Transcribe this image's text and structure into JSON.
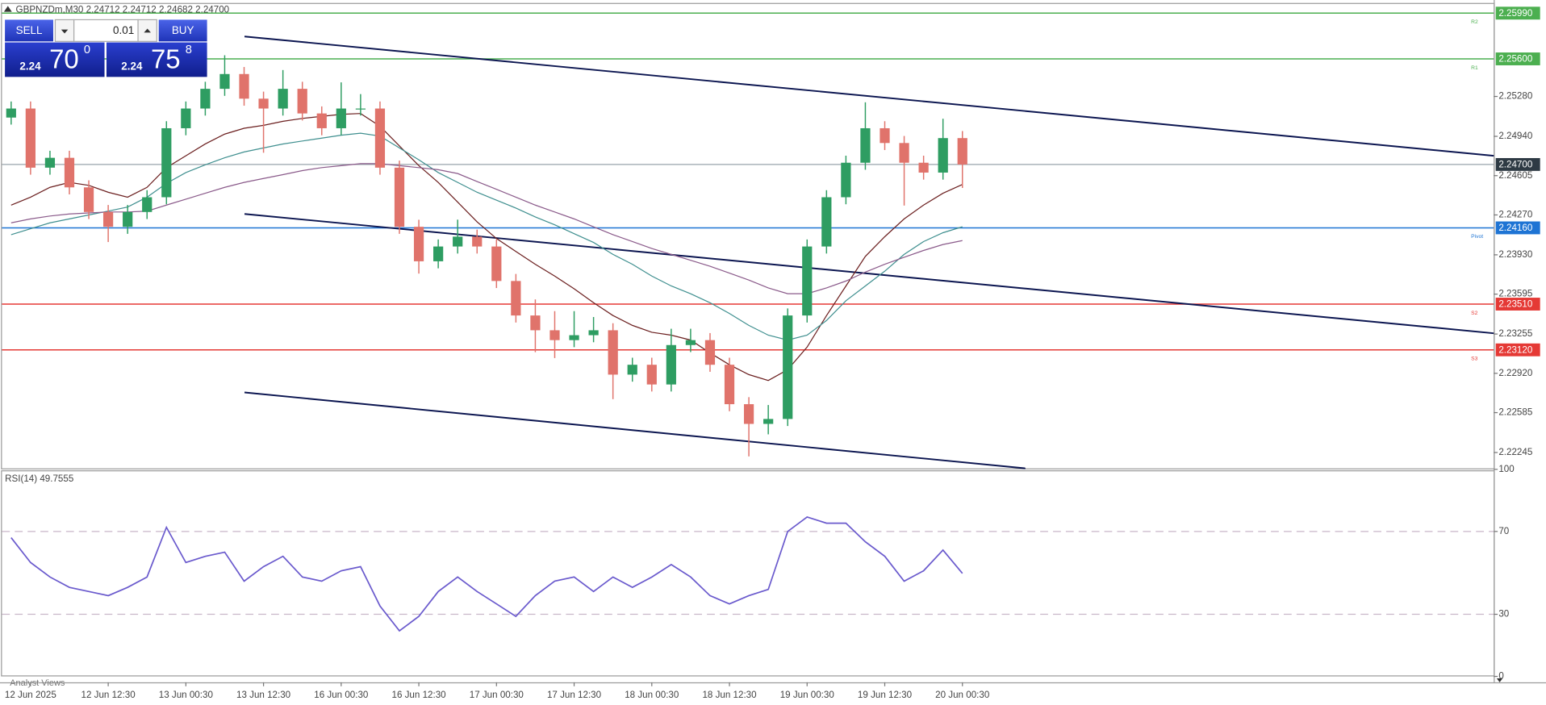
{
  "chart_data": {
    "type": "candlestick",
    "title": "GBPNZDm,M30  2.24712 2.24712 2.24682 2.24700",
    "categories": [
      null,
      "12 Jun 2025",
      null,
      null,
      null,
      "12 Jun 12:30",
      null,
      null,
      null,
      "13 Jun 00:30",
      null,
      null,
      null,
      "13 Jun 12:30",
      null,
      null,
      null,
      "16 Jun 00:30",
      null,
      null,
      null,
      "16 Jun 12:30",
      null,
      null,
      null,
      "17 Jun 00:30",
      null,
      null,
      null,
      "17 Jun 12:30",
      null,
      null,
      null,
      "18 Jun 00:30",
      null,
      null,
      null,
      "18 Jun 12:30",
      null,
      null,
      null,
      "19 Jun 00:30",
      null,
      null,
      null,
      "19 Jun 12:30",
      null,
      null,
      null,
      "20 Jun 00:30"
    ],
    "open": [
      2.251,
      2.25177,
      2.24673,
      2.24757,
      2.24505,
      2.24295,
      2.24169,
      2.24295,
      2.24421,
      2.25009,
      2.25177,
      2.25345,
      2.25471,
      2.25261,
      2.25177,
      2.25345,
      2.25135,
      2.25009,
      2.25177,
      2.25177,
      2.24673,
      2.24169,
      2.23875,
      2.24001,
      2.24085,
      2.24001,
      2.23707,
      2.23413,
      2.23287,
      2.23203,
      2.23245,
      2.23287,
      2.22909,
      2.22993,
      2.22825,
      2.23161,
      2.23203,
      2.22993,
      2.22657,
      2.22489,
      2.22531,
      2.23413,
      2.24001,
      2.24421,
      2.24715,
      2.25009,
      2.24883,
      2.24715,
      2.24631,
      2.24925
    ],
    "high": [
      2.25237,
      2.25237,
      2.24817,
      2.24817,
      2.24565,
      2.24355,
      2.24355,
      2.24481,
      2.25069,
      2.25237,
      2.25405,
      2.25631,
      2.25531,
      2.25321,
      2.25505,
      2.25405,
      2.25195,
      2.254,
      2.253,
      2.25237,
      2.24733,
      2.24229,
      2.24061,
      2.2423,
      2.24145,
      2.24061,
      2.23767,
      2.2355,
      2.2345,
      2.2345,
      2.234,
      2.23347,
      2.23053,
      2.23053,
      2.233,
      2.233,
      2.23263,
      2.23053,
      2.22717,
      2.2265,
      2.23473,
      2.24061,
      2.24481,
      2.24775,
      2.2523,
      2.25069,
      2.24943,
      2.24775,
      2.2509,
      2.24985
    ],
    "low": [
      2.2504,
      2.24613,
      2.24613,
      2.24445,
      2.24235,
      2.24039,
      2.24109,
      2.24235,
      2.24361,
      2.24949,
      2.25117,
      2.25285,
      2.25201,
      2.248,
      2.25117,
      2.25075,
      2.24949,
      2.24949,
      2.25117,
      2.24613,
      2.24109,
      2.2377,
      2.23815,
      2.23941,
      2.23941,
      2.23647,
      2.23353,
      2.231,
      2.2305,
      2.23143,
      2.23185,
      2.227,
      2.22849,
      2.22765,
      2.22765,
      2.23101,
      2.22933,
      2.22597,
      2.22212,
      2.224,
      2.22471,
      2.23353,
      2.23941,
      2.24361,
      2.24655,
      2.24823,
      2.2435,
      2.24571,
      2.24571,
      2.245
    ],
    "close": [
      2.25177,
      2.24673,
      2.24757,
      2.24505,
      2.24295,
      2.24169,
      2.24295,
      2.24421,
      2.25009,
      2.25177,
      2.25345,
      2.25471,
      2.25261,
      2.25177,
      2.25345,
      2.25135,
      2.25009,
      2.25177,
      2.25177,
      2.24673,
      2.24169,
      2.23875,
      2.24001,
      2.24085,
      2.24001,
      2.23707,
      2.23413,
      2.23287,
      2.23203,
      2.23245,
      2.23287,
      2.22909,
      2.22993,
      2.22825,
      2.23161,
      2.23203,
      2.22993,
      2.22657,
      2.22489,
      2.22531,
      2.23413,
      2.24001,
      2.24421,
      2.24715,
      2.25009,
      2.24883,
      2.24715,
      2.24631,
      2.24925,
      2.247
    ],
    "up_color": "#2e9d62",
    "down_color": "#e0736b",
    "ylim": [
      2.2211,
      2.2606
    ],
    "yticks": [
      {
        "value": 2.2528,
        "label": "2.25280"
      },
      {
        "value": 2.2494,
        "label": "2.24940"
      },
      2.24605,
      {
        "value": 2.2427,
        "label": "2.24270"
      },
      {
        "value": 2.2393,
        "label": "2.23930"
      },
      2.23595,
      2.23255,
      {
        "value": 2.2292,
        "label": "2.22920"
      },
      2.22585,
      2.22245
    ],
    "grid": false,
    "moving_averages": [
      {
        "color": "#6b1f1f",
        "values": [
          2.24354,
          2.24421,
          2.24505,
          2.24547,
          2.24522,
          2.24463,
          2.24421,
          2.24505,
          2.24673,
          2.24774,
          2.24875,
          2.24959,
          2.25009,
          2.25034,
          2.25068,
          2.25093,
          2.2511,
          2.25127,
          2.25135,
          2.25026,
          2.24858,
          2.2469,
          2.24547,
          2.24379,
          2.24211,
          2.24068,
          2.23959,
          2.2385,
          2.23749,
          2.2364,
          2.23522,
          2.23413,
          2.23329,
          2.2327,
          2.23245,
          2.23203,
          2.23094,
          2.22993,
          2.22909,
          2.22859,
          2.22951,
          2.23144,
          2.23413,
          2.23665,
          2.23917,
          2.24085,
          2.24236,
          2.24354,
          2.24455,
          2.2453
        ]
      },
      {
        "color": "#3f8f8f",
        "values": [
          2.24102,
          2.24152,
          2.24203,
          2.24236,
          2.2427,
          2.24303,
          2.24337,
          2.24421,
          2.24539,
          2.24631,
          2.24698,
          2.24757,
          2.24807,
          2.24841,
          2.24875,
          2.249,
          2.24925,
          2.2495,
          2.24967,
          2.24942,
          2.24841,
          2.2474,
          2.24631,
          2.24547,
          2.24463,
          2.24396,
          2.24329,
          2.24253,
          2.24186,
          2.2411,
          2.24035,
          2.23934,
          2.2385,
          2.23749,
          2.23665,
          2.23598,
          2.23522,
          2.2343,
          2.23329,
          2.23245,
          2.23203,
          2.23245,
          2.23371,
          2.23539,
          2.23665,
          2.23791,
          2.23934,
          2.24043,
          2.24119,
          2.24169
        ]
      },
      {
        "color": "#8a5a8a",
        "values": [
          2.24203,
          2.24236,
          2.24261,
          2.24278,
          2.24287,
          2.24295,
          2.24295,
          2.24303,
          2.24354,
          2.24404,
          2.24455,
          2.24505,
          2.24547,
          2.24581,
          2.24614,
          2.24648,
          2.24673,
          2.2469,
          2.24707,
          2.24707,
          2.2469,
          2.24673,
          2.24656,
          2.24623,
          2.24555,
          2.24488,
          2.24421,
          2.24354,
          2.24295,
          2.24236,
          2.24169,
          2.24102,
          2.24043,
          2.23984,
          2.23934,
          2.23883,
          2.23833,
          2.23774,
          2.23715,
          2.23648,
          2.23598,
          2.23598,
          2.23648,
          2.23707,
          2.23783,
          2.2385,
          2.23909,
          2.23967,
          2.24018,
          2.24051
        ]
      }
    ],
    "levels": [
      {
        "name": "R2",
        "value": 2.2599,
        "value_label": "2.25990",
        "color": "#4caf50"
      },
      {
        "name": "R1",
        "value": 2.256,
        "value_label": "2.25600",
        "color": "#4caf50"
      },
      {
        "name": "Pivot",
        "value": 2.2416,
        "value_label": "2.24160",
        "color": "#1e74d4"
      },
      {
        "name": "S2",
        "value": 2.2351,
        "value_label": "2.23510",
        "color": "#e53935"
      },
      {
        "name": "S3",
        "value": 2.2312,
        "value_label": "2.23120",
        "color": "#e53935"
      }
    ],
    "last_price": {
      "value": 2.247,
      "value_label": "2.24700",
      "color": "#2e3a44"
    },
    "indicator": {
      "type": "line",
      "title": "RSI(14)",
      "last_value": 49.7555,
      "color": "#6a5acd",
      "ylim": [
        0,
        100
      ],
      "yticks": [
        0,
        30,
        70,
        100
      ],
      "levels": [
        30,
        70
      ],
      "values": [
        67,
        55,
        48,
        43,
        41,
        39,
        43,
        48,
        72,
        55,
        58,
        60,
        46,
        53,
        58,
        48,
        46,
        51,
        53,
        34,
        22,
        29,
        41,
        48,
        41,
        35,
        29,
        39,
        46,
        48,
        41,
        48,
        43,
        48,
        54,
        48,
        39,
        35,
        39,
        42,
        70,
        77,
        74,
        74,
        65,
        58,
        46,
        51,
        61,
        49.7555
      ]
    }
  },
  "trade_panel": {
    "sell": "SELL",
    "buy": "BUY",
    "lot": "0.01",
    "bid_big": "2.24",
    "bid_pips": "70",
    "bid_frac": "0",
    "ask_big": "2.24",
    "ask_pips": "75",
    "ask_frac": "8"
  },
  "footer": {
    "tab": "Analyst Views"
  }
}
